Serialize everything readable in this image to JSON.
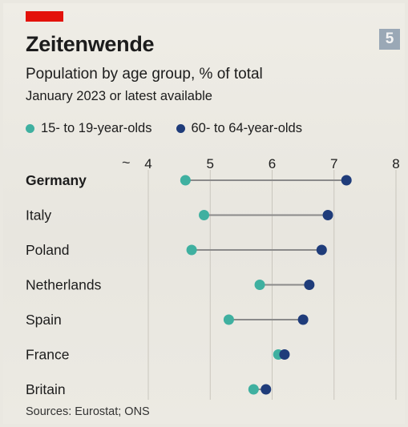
{
  "header": {
    "title": "Zeitenwende",
    "subtitle": "Population by age group, % of total",
    "note": "January 2023 or latest available",
    "badge": "5"
  },
  "footer": {
    "source": "Sources: Eurostat; ONS"
  },
  "colors": {
    "accent_red": "#e3120b",
    "young": "#3fb0a0",
    "old": "#1f3c7a",
    "connector": "#8a8a8a"
  },
  "chart_data": {
    "type": "dot-range",
    "title": "Zeitenwende",
    "subtitle": "Population by age group, % of total",
    "note": "January 2023 or latest available",
    "axis_break_symbol": "~",
    "xlim": [
      3.5,
      8
    ],
    "ticks": [
      4,
      5,
      6,
      7,
      8
    ],
    "tick_labels": [
      "4",
      "5",
      "6",
      "7",
      "8"
    ],
    "legend_position": "top-left",
    "grid": "vertical",
    "series": [
      {
        "name": "15- to 19-year-olds",
        "key": "young",
        "color": "#3fb0a0"
      },
      {
        "name": "60- to 64-year-olds",
        "key": "old",
        "color": "#1f3c7a"
      }
    ],
    "categories": [
      "Germany",
      "Italy",
      "Poland",
      "Netherlands",
      "Spain",
      "France",
      "Britain"
    ],
    "highlight": "Germany",
    "data": [
      {
        "country": "Germany",
        "young": 4.6,
        "old": 7.2
      },
      {
        "country": "Italy",
        "young": 4.9,
        "old": 6.9
      },
      {
        "country": "Poland",
        "young": 4.7,
        "old": 6.8
      },
      {
        "country": "Netherlands",
        "young": 5.8,
        "old": 6.6
      },
      {
        "country": "Spain",
        "young": 5.3,
        "old": 6.5
      },
      {
        "country": "France",
        "young": 6.1,
        "old": 6.2
      },
      {
        "country": "Britain",
        "young": 5.7,
        "old": 5.9
      }
    ],
    "sources": "Sources: Eurostat; ONS"
  }
}
